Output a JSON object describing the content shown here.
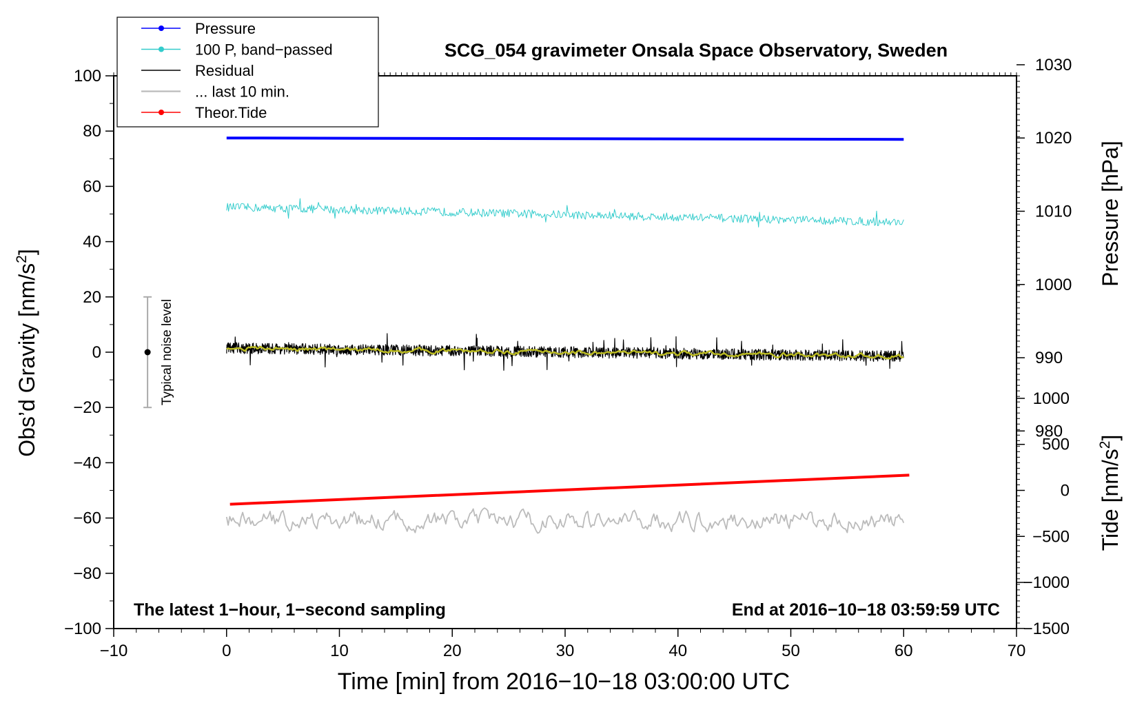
{
  "chart_data": {
    "type": "line",
    "title": "SCG_054 gravimeter Onsala Space Observatory, Sweden",
    "xlabel": "Time [min] from 2016−10−18 03:00:00 UTC",
    "ylabel_main": "Obs’d Gravity [nm/s",
    "ylabel_main_sup": "2",
    "ylabel_main_close": "]",
    "ylabel_pressure": "Pressure [hPa]",
    "ylabel_tide": "Tide [nm/s",
    "ylabel_tide_sup": "2",
    "ylabel_tide_close": "]",
    "xlim": [
      -10,
      70
    ],
    "ylim": [
      -100,
      100
    ],
    "x_ticks": [
      -10,
      0,
      10,
      20,
      30,
      40,
      50,
      60,
      70
    ],
    "x_tick_labels": [
      "−10",
      "0",
      "10",
      "20",
      "30",
      "40",
      "50",
      "60",
      "70"
    ],
    "y_ticks": [
      100,
      80,
      60,
      40,
      20,
      0,
      -20,
      -40,
      -60,
      -80,
      -100
    ],
    "y_tick_labels": [
      "100",
      "80",
      "60",
      "40",
      "20",
      "0",
      "−20",
      "−40",
      "−60",
      "−80",
      "−100"
    ],
    "pressure_axis": {
      "ticks": [
        1030,
        1020,
        1010,
        1000,
        990,
        980
      ],
      "tick_labels": [
        "1030",
        "1020",
        "1010",
        "1000",
        "990",
        "980"
      ],
      "ref_hpa": 1020,
      "ref_gravity": 77.5,
      "gravity_per_hpa": 2.65
    },
    "tide_axis": {
      "ticks": [
        1000,
        500,
        0,
        -500,
        -1000,
        -1500
      ],
      "tick_labels": [
        "1000",
        "500",
        "0",
        "−500",
        "−1000",
        "−1500"
      ],
      "ref_tide": 0,
      "ref_gravity": -50,
      "gravity_per_unit": 0.0333
    },
    "legend": {
      "placement": "top-left",
      "entries": [
        {
          "label": "Pressure",
          "color": "#0000ff",
          "marker": true
        },
        {
          "label": "100 P, band−passed",
          "color": "#33cccc",
          "marker": true
        },
        {
          "label": "Residual",
          "color": "#000000",
          "marker": false
        },
        {
          "label": "... last 10 min.",
          "color": "#bbbbbb",
          "marker": false
        },
        {
          "label": "Theor.Tide",
          "color": "#ff0000",
          "marker": true
        }
      ]
    },
    "series": [
      {
        "name": "Pressure",
        "color": "#0000ff",
        "x_range": [
          0,
          60
        ],
        "start": 77.5,
        "end": 77.0
      },
      {
        "name": "100 P, band-passed",
        "color": "#33cccc",
        "x_range": [
          0,
          60
        ],
        "start": 52.5,
        "end": 47.0,
        "noise": 1.5
      },
      {
        "name": "Residual",
        "color": "#000000",
        "x_range": [
          0,
          60
        ],
        "start": 1.5,
        "end": -1.5,
        "noise": 2.0
      },
      {
        "name": "Residual smoothed",
        "color": "#bbbb22",
        "x_range": [
          0,
          60
        ],
        "start": 1.5,
        "end": -1.5,
        "noise": 0.6
      },
      {
        "name": "... last 10 min.",
        "color": "#bbbbbb",
        "x_range": [
          0,
          60
        ],
        "start": -61,
        "end": -61,
        "noise": 2.5
      },
      {
        "name": "Theor.Tide",
        "color": "#ff0000",
        "x_range": [
          0.3,
          60.5
        ],
        "start": -55.0,
        "end": -44.5
      }
    ],
    "noise_bar": {
      "label": "Typical noise level",
      "x": -7,
      "center": 0,
      "low": -20,
      "high": 20
    },
    "annotations": {
      "bottom_left": "The latest 1−hour, 1−second sampling",
      "bottom_right": "End at 2016−10−18 03:59:59 UTC"
    }
  }
}
